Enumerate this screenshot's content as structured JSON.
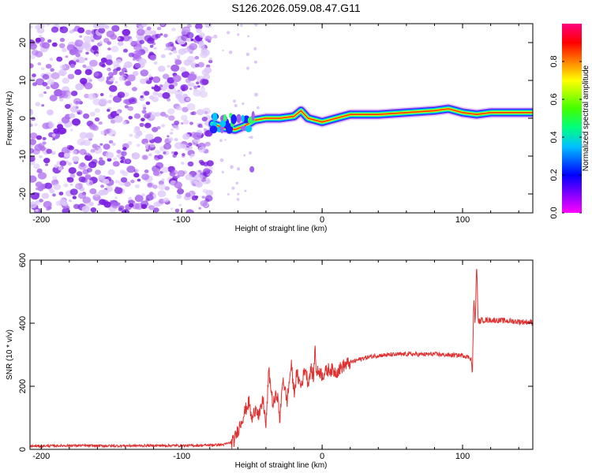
{
  "title": "S126.2026.059.08.47.G11",
  "colors": {
    "axis": "#000000",
    "snr_line": "#e03030",
    "noise_scatter": "#7a1ee0",
    "background": "#ffffff"
  },
  "chart_data": [
    {
      "type": "heatmap",
      "name": "spectrogram",
      "xlabel": "Height of straight line (km)",
      "ylabel": "Frequency (Hz)",
      "xlim": [
        -208,
        150
      ],
      "ylim": [
        -25,
        25
      ],
      "xticks": [
        -200,
        -100,
        0,
        100
      ],
      "yticks": [
        -20,
        -10,
        0,
        10,
        20
      ],
      "noise_region_x": [
        -208,
        -79
      ],
      "signal_track": {
        "x": [
          -78,
          -70,
          -62,
          -55,
          -48,
          -40,
          -30,
          -20,
          -15,
          -10,
          0,
          10,
          20,
          40,
          60,
          80,
          90,
          100,
          110,
          120,
          140,
          150
        ],
        "y": [
          -1.5,
          -2.5,
          -3,
          -2,
          -0.5,
          0,
          0,
          0.5,
          2,
          0,
          -1,
          0,
          1,
          1,
          1.5,
          2,
          2.5,
          1.5,
          1,
          1.5,
          1.5,
          1.5
        ]
      },
      "colorbar": {
        "label": "Normalized spectral amplitude",
        "range": [
          0,
          1
        ],
        "ticks": [
          "0.0",
          "0.2",
          "0.4",
          "0.6",
          "0.8"
        ]
      }
    },
    {
      "type": "line",
      "name": "snr",
      "xlabel": "Height of straight line (km)",
      "ylabel": "SNR (10 * v/v)",
      "xlim": [
        -208,
        150
      ],
      "ylim": [
        0,
        600
      ],
      "xticks": [
        -200,
        -100,
        0,
        100
      ],
      "yticks": [
        0,
        200,
        400,
        600
      ],
      "series": [
        {
          "name": "SNR",
          "x": [
            -208,
            -180,
            -150,
            -120,
            -90,
            -70,
            -63,
            -60,
            -55,
            -52,
            -50,
            -47,
            -45,
            -42,
            -40,
            -38,
            -35,
            -32,
            -30,
            -28,
            -25,
            -22,
            -20,
            -18,
            -15,
            -12,
            -10,
            -8,
            -6,
            -5,
            -4,
            -2,
            0,
            5,
            10,
            15,
            20,
            25,
            30,
            40,
            50,
            60,
            70,
            80,
            90,
            100,
            106,
            107,
            108,
            109,
            110,
            111,
            112,
            114,
            120,
            130,
            140,
            150
          ],
          "y": [
            10,
            12,
            11,
            12,
            12,
            15,
            25,
            60,
            120,
            150,
            90,
            140,
            100,
            160,
            70,
            250,
            140,
            180,
            90,
            230,
            150,
            270,
            180,
            240,
            200,
            260,
            210,
            255,
            230,
            330,
            240,
            250,
            235,
            255,
            245,
            265,
            275,
            283,
            290,
            298,
            300,
            302,
            301,
            302,
            299,
            298,
            290,
            240,
            480,
            395,
            600,
            410,
            405,
            410,
            410,
            408,
            405,
            403
          ]
        }
      ]
    }
  ]
}
